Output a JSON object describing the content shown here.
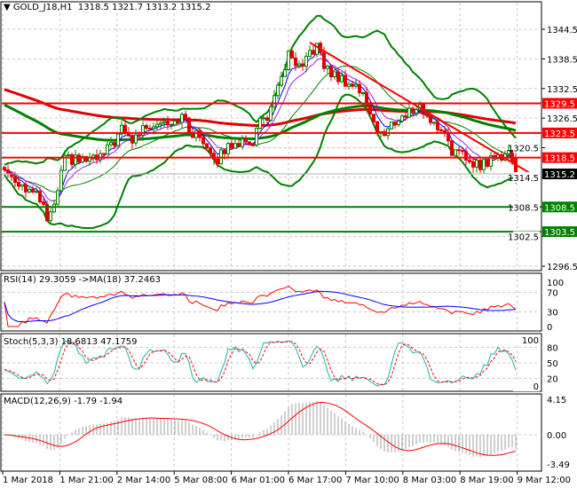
{
  "header": {
    "symbol": "GOLD_J18,H1",
    "open": "1318.5",
    "high": "1321.7",
    "low": "1313.2",
    "close": "1315.2"
  },
  "rsi": {
    "label": "RSI(14) 29.3059  ->MA(18) 37.2463",
    "levels": [
      "100",
      "70",
      "30",
      "0"
    ]
  },
  "stoch": {
    "label": "Stoch(5,3,3) 18.6813 47.1759",
    "levels": [
      "100",
      "80",
      "50",
      "20",
      "0"
    ]
  },
  "macd": {
    "label": "MACD(12,26,9) -1.79 -1.94",
    "levels": [
      "4.15",
      "0.00",
      "-3.49"
    ]
  },
  "chart_data": {
    "type": "candlestick",
    "title": "GOLD_J18,H1",
    "price_axis": {
      "ticks": [
        "1344.5",
        "1338.5",
        "1332.5",
        "1326.5",
        "1320.5",
        "1314.5",
        "1308.5",
        "1302.5",
        "1296.5"
      ],
      "range": [
        1296.5,
        1344.5
      ]
    },
    "time_axis": {
      "ticks": [
        "1 Mar 2018",
        "1 Mar 21:00",
        "2 Mar 14:00",
        "5 Mar 08:00",
        "6 Mar 01:00",
        "6 Mar 17:00",
        "7 Mar 10:00",
        "8 Mar 03:00",
        "8 Mar 19:00",
        "9 Mar 12:00"
      ]
    },
    "price_path_anchors": [
      [
        0,
        1316
      ],
      [
        5,
        1313
      ],
      [
        10,
        1310
      ],
      [
        12,
        1306
      ],
      [
        14,
        1308
      ],
      [
        15,
        1312
      ],
      [
        17,
        1318
      ],
      [
        25,
        1318
      ],
      [
        28,
        1319
      ],
      [
        31,
        1322
      ],
      [
        33,
        1324
      ],
      [
        36,
        1322
      ],
      [
        40,
        1325
      ],
      [
        44,
        1326
      ],
      [
        48,
        1326
      ],
      [
        50,
        1327
      ],
      [
        52,
        1324
      ],
      [
        56,
        1322
      ],
      [
        58,
        1320
      ],
      [
        60,
        1318
      ],
      [
        62,
        1320
      ],
      [
        65,
        1322
      ],
      [
        68,
        1321
      ],
      [
        70,
        1322
      ],
      [
        72,
        1326
      ],
      [
        74,
        1327
      ],
      [
        76,
        1330
      ],
      [
        78,
        1335
      ],
      [
        80,
        1339
      ],
      [
        82,
        1337
      ],
      [
        84,
        1336
      ],
      [
        86,
        1340
      ],
      [
        88,
        1341
      ],
      [
        90,
        1337
      ],
      [
        93,
        1335
      ],
      [
        96,
        1334
      ],
      [
        99,
        1333
      ],
      [
        101,
        1331
      ],
      [
        103,
        1328
      ],
      [
        105,
        1324
      ],
      [
        107,
        1323
      ],
      [
        110,
        1326
      ],
      [
        113,
        1327
      ],
      [
        116,
        1329
      ],
      [
        118,
        1328
      ],
      [
        121,
        1325
      ],
      [
        124,
        1324
      ],
      [
        126,
        1320
      ],
      [
        128,
        1319
      ],
      [
        131,
        1318
      ],
      [
        134,
        1317
      ],
      [
        137,
        1318
      ],
      [
        140,
        1319
      ],
      [
        142,
        1320
      ],
      [
        144,
        1315.2
      ]
    ],
    "horizontal_levels": [
      {
        "price": "1329.5",
        "color": "#ff0000"
      },
      {
        "price": "1323.5",
        "color": "#ff0000"
      },
      {
        "price": "1318.5",
        "color": "#ff0000"
      },
      {
        "price": "1308.5",
        "color": "#008000"
      },
      {
        "price": "1303.5",
        "color": "#008000"
      }
    ],
    "current_price": "1315.2",
    "trendline": {
      "from": [
        86,
        1341.8
      ],
      "to": [
        150,
        1314.5
      ],
      "color": "#ff0000"
    }
  }
}
